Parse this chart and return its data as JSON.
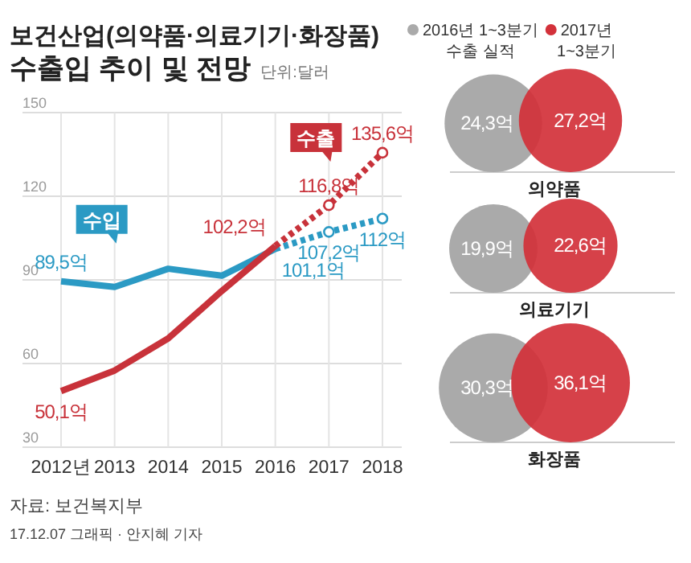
{
  "chart_data": [
    {
      "type": "line",
      "title": "보건산업(의약품·의료기기·화장품)\n수출입 추이 및 전망",
      "subtitle": "단위:달러",
      "categories": [
        "2012년",
        "2013",
        "2014",
        "2015",
        "2016",
        "2017",
        "2018"
      ],
      "ylim": [
        30,
        150
      ],
      "yticks": [
        30,
        60,
        90,
        120,
        150
      ],
      "grid": true,
      "series": [
        {
          "name": "수입",
          "color": "#2b9ac4",
          "line_style": "solid",
          "values": [
            89.5,
            87.5,
            94,
            91.5,
            101.1,
            null,
            null
          ],
          "value_labels": [
            "89,5억",
            null,
            null,
            null,
            "101,1억",
            null,
            null
          ]
        },
        {
          "color": "#2b9ac4",
          "line_style": "dotted",
          "marker": "circle",
          "values": [
            null,
            null,
            null,
            null,
            101.1,
            107.2,
            112
          ],
          "value_labels": [
            null,
            null,
            null,
            null,
            null,
            "107,2억",
            "112억"
          ]
        },
        {
          "color": "#c8323a",
          "line_style": "solid",
          "values": [
            50.1,
            57.5,
            69,
            86,
            102.2,
            null,
            null
          ],
          "value_labels": [
            "50,1억",
            null,
            null,
            null,
            "102,2억",
            null,
            null
          ]
        },
        {
          "name": "수출",
          "color": "#c8323a",
          "line_style": "dotted",
          "marker": "circle",
          "values": [
            null,
            null,
            null,
            null,
            102.2,
            116.8,
            135.6
          ],
          "value_labels": [
            null,
            null,
            null,
            null,
            null,
            "116,8억",
            "135,6억"
          ]
        }
      ],
      "annotations": [
        "자료: 보건복지부",
        "17.12.07 그래픽 · 안지혜 기자"
      ]
    },
    {
      "type": "other",
      "legend": "top",
      "categories": [
        "의약품",
        "의료기기",
        "화장품"
      ],
      "series": [
        {
          "name": "2016년 1~3분기 수출 실적",
          "color": "#aaaaaa",
          "values": [
            24.3,
            19.9,
            30.3
          ],
          "value_labels": [
            "24,3억",
            "19,9억",
            "30,3억"
          ]
        },
        {
          "name": "2017년 1~3분기",
          "color": "#d3313a",
          "values": [
            27.2,
            22.6,
            36.1
          ],
          "value_labels": [
            "27,2억",
            "22,6억",
            "36,1억"
          ]
        }
      ]
    }
  ]
}
